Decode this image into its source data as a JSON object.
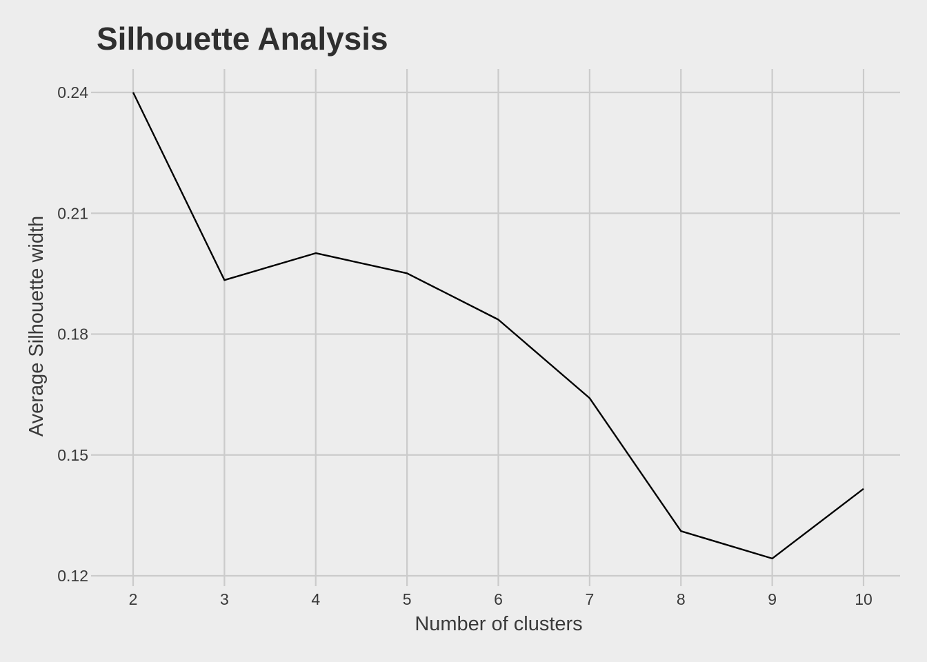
{
  "chart_data": {
    "type": "line",
    "title": "Silhouette Analysis",
    "xlabel": "Number of clusters",
    "ylabel": "Average Silhouette width",
    "x": [
      2,
      3,
      4,
      5,
      6,
      7,
      8,
      9,
      10
    ],
    "x_tick_labels": [
      "2",
      "3",
      "4",
      "5",
      "6",
      "7",
      "8",
      "9",
      "10"
    ],
    "y_ticks": [
      0.12,
      0.15,
      0.18,
      0.21,
      0.24
    ],
    "y_tick_labels": [
      "0.12",
      "0.15",
      "0.18",
      "0.21",
      "0.24"
    ],
    "xlim": [
      1.6,
      10.4
    ],
    "ylim": [
      0.12,
      0.24
    ],
    "grid": true,
    "legend": "none",
    "series": [
      {
        "values": [
          0.24,
          0.1934,
          0.2001,
          0.1951,
          0.1836,
          0.1641,
          0.1311,
          0.1243,
          0.1416
        ],
        "color": "#000000"
      }
    ]
  }
}
